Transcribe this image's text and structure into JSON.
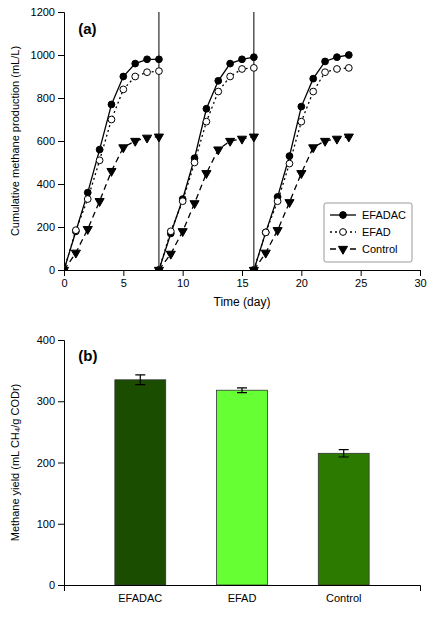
{
  "chart_data": [
    {
      "type": "line",
      "title": "(a)",
      "x_label": "Time (day)",
      "y_label": "Cumulative methane production (mL/L)",
      "xlim": [
        0,
        30
      ],
      "ylim": [
        0,
        1200
      ],
      "xticks": [
        0,
        5,
        10,
        15,
        20,
        25,
        30
      ],
      "yticks": [
        0,
        200,
        400,
        600,
        800,
        1000,
        1200
      ],
      "legend": "lower right",
      "x": [
        0,
        1,
        2,
        3,
        4,
        5,
        6,
        7,
        8,
        8,
        9,
        10,
        11,
        12,
        13,
        14,
        15,
        16,
        16,
        17,
        18,
        19,
        20,
        21,
        22,
        23,
        24
      ],
      "series": [
        {
          "name": "EFADAC",
          "color": "black",
          "line_style": "solid",
          "marker": "circle",
          "values": [
            0,
            180,
            360,
            560,
            770,
            900,
            960,
            980,
            980,
            0,
            170,
            330,
            520,
            750,
            880,
            960,
            980,
            990,
            0,
            175,
            340,
            530,
            760,
            890,
            970,
            990,
            1000
          ]
        },
        {
          "name": "EFAD",
          "color": "black",
          "line_style": "dotted",
          "marker": "open-circle",
          "values": [
            0,
            185,
            330,
            510,
            700,
            840,
            900,
            920,
            925,
            0,
            180,
            320,
            500,
            690,
            830,
            900,
            935,
            940,
            0,
            175,
            320,
            495,
            690,
            830,
            920,
            935,
            940
          ]
        },
        {
          "name": "Control",
          "color": "black",
          "line_style": "dashed",
          "marker": "triangle-down",
          "values": [
            0,
            80,
            190,
            320,
            460,
            570,
            600,
            615,
            620,
            0,
            75,
            180,
            310,
            450,
            560,
            600,
            610,
            620,
            0,
            80,
            185,
            315,
            450,
            570,
            600,
            610,
            620
          ]
        }
      ],
      "vlines": [
        8,
        16
      ]
    },
    {
      "type": "bar",
      "title": "(b)",
      "y_label": "Methane yield (mL CH₄/g CODr)",
      "ylim": [
        0,
        400
      ],
      "yticks": [
        0,
        100,
        200,
        300,
        400
      ],
      "categories": [
        "EFADAC",
        "EFAD",
        "Control"
      ],
      "values": [
        335,
        318,
        215
      ],
      "errors": [
        8,
        4,
        6
      ],
      "colors": [
        "#1a4d00",
        "#66ff33",
        "#2d7a00"
      ]
    }
  ]
}
